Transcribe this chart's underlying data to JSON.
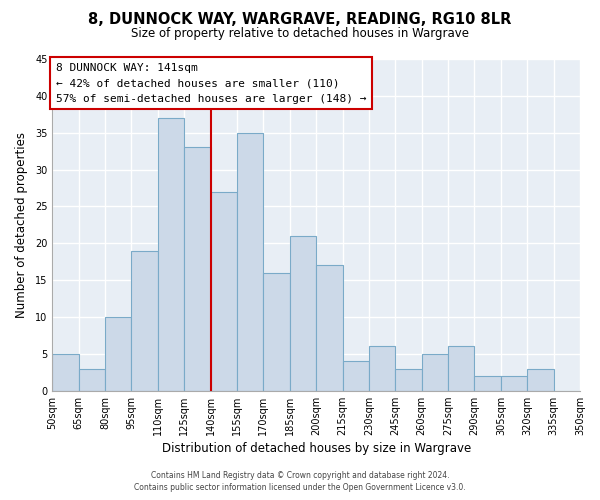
{
  "title": "8, DUNNOCK WAY, WARGRAVE, READING, RG10 8LR",
  "subtitle": "Size of property relative to detached houses in Wargrave",
  "xlabel": "Distribution of detached houses by size in Wargrave",
  "ylabel": "Number of detached properties",
  "bar_color": "#ccd9e8",
  "bar_edgecolor": "#7aaac8",
  "vline_x": 140,
  "vline_color": "#cc0000",
  "annotation_line1": "8 DUNNOCK WAY: 141sqm",
  "annotation_line2": "← 42% of detached houses are smaller (110)",
  "annotation_line3": "57% of semi-detached houses are larger (148) →",
  "annotation_box_color": "#ffffff",
  "annotation_border_color": "#cc0000",
  "bins": [
    50,
    65,
    80,
    95,
    110,
    125,
    140,
    155,
    170,
    185,
    200,
    215,
    230,
    245,
    260,
    275,
    290,
    305,
    320,
    335,
    350
  ],
  "counts": [
    5,
    3,
    10,
    19,
    37,
    33,
    27,
    35,
    16,
    21,
    17,
    4,
    6,
    3,
    5,
    6,
    2,
    2,
    3,
    0
  ],
  "ylim": [
    0,
    45
  ],
  "yticks": [
    0,
    5,
    10,
    15,
    20,
    25,
    30,
    35,
    40,
    45
  ],
  "footer_line1": "Contains HM Land Registry data © Crown copyright and database right 2024.",
  "footer_line2": "Contains public sector information licensed under the Open Government Licence v3.0.",
  "fig_facecolor": "#ffffff",
  "plot_facecolor": "#e8eef5",
  "grid_color": "#ffffff",
  "spine_color": "#aaaaaa"
}
